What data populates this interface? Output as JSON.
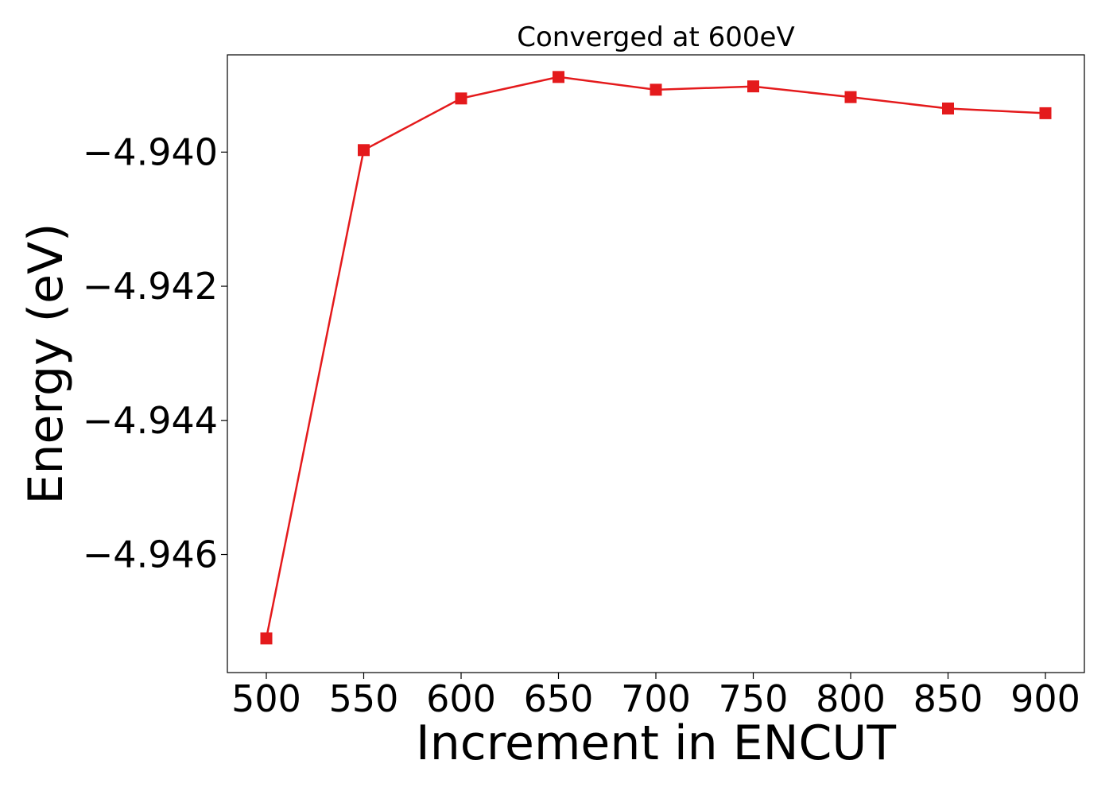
{
  "chart_data": {
    "type": "line",
    "title": "Converged at 600eV",
    "xlabel": "Increment in ENCUT",
    "ylabel": "Energy (eV)",
    "x": [
      500,
      550,
      600,
      650,
      700,
      750,
      800,
      850,
      900
    ],
    "x_tick_labels": [
      "500",
      "550",
      "600",
      "650",
      "700",
      "750",
      "800",
      "850",
      "900"
    ],
    "y_ticks": [
      -4.94,
      -4.942,
      -4.944,
      -4.946
    ],
    "y_tick_labels": [
      "−4.940",
      "−4.942",
      "−4.944",
      "−4.946"
    ],
    "xlim": [
      480,
      920
    ],
    "ylim": [
      -4.94776,
      -4.93855
    ],
    "grid": false,
    "series": [
      {
        "color": "#e41a1c",
        "marker": "square",
        "values": [
          -4.94725,
          -4.93997,
          -4.9392,
          -4.93888,
          -4.93907,
          -4.93902,
          -4.93918,
          -4.93935,
          -4.93942
        ]
      }
    ]
  }
}
